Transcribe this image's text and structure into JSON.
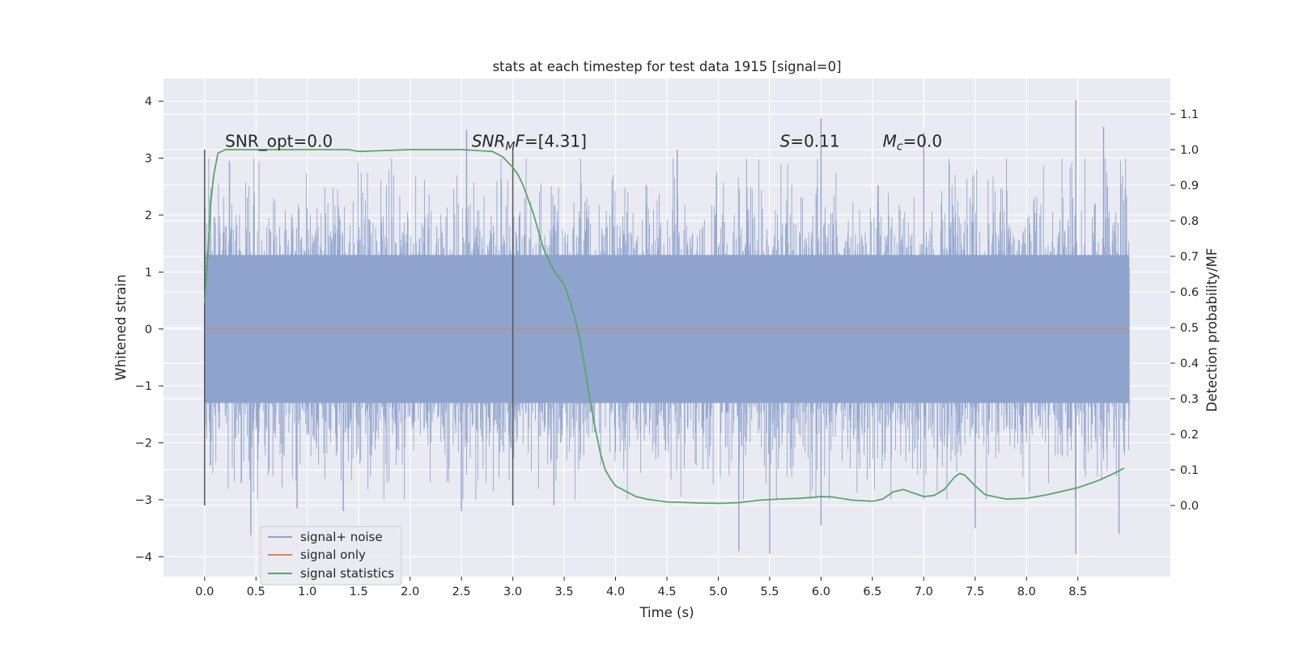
{
  "chart_data": {
    "type": "line",
    "title": "stats at each timestep for test data 1915 [signal=0]",
    "xlabel": "Time (s)",
    "ylabel": "Whitened strain",
    "y2label": "Detection probability/MF",
    "xlim": [
      -0.4,
      9.4
    ],
    "ylim": [
      -4.35,
      4.4
    ],
    "y2lim": [
      -0.2,
      1.2
    ],
    "xticks": [
      0.0,
      0.5,
      1.0,
      1.5,
      2.0,
      2.5,
      3.0,
      3.5,
      4.0,
      4.5,
      5.0,
      5.5,
      6.0,
      6.5,
      7.0,
      7.5,
      8.0,
      8.5
    ],
    "xtick_labels": [
      "0.0",
      "0.5",
      "1.0",
      "1.5",
      "2.0",
      "2.5",
      "3.0",
      "3.5",
      "4.0",
      "4.5",
      "5.0",
      "5.5",
      "6.0",
      "6.5",
      "7.0",
      "7.5",
      "8.0",
      "8.5"
    ],
    "yticks": [
      4,
      3,
      2,
      1,
      0,
      -1,
      -2,
      -3,
      -4
    ],
    "ytick_labels": [
      "4",
      "3",
      "2",
      "1",
      "0",
      "−1",
      "−2",
      "−3",
      "−4"
    ],
    "y2ticks": [
      1.1,
      1.0,
      0.9,
      0.8,
      0.7,
      0.6,
      0.5,
      0.4,
      0.3,
      0.2,
      0.1,
      0.0
    ],
    "y2tick_labels": [
      "1.1",
      "1.0",
      "0.9",
      "0.8",
      "0.7",
      "0.6",
      "0.5",
      "0.4",
      "0.3",
      "0.2",
      "0.1",
      "0.0"
    ],
    "grid": true,
    "legend_position": "lower-left",
    "legend": [
      {
        "label": "signal+ noise",
        "color": "#8fa4cc"
      },
      {
        "label": "signal only",
        "color": "#dd8452"
      },
      {
        "label": "signal statistics",
        "color": "#55a868"
      }
    ],
    "annotations": [
      {
        "x": 0.2,
        "y": 3.2,
        "parts": [
          {
            "t": "SNR_opt=0.0",
            "i": false
          }
        ]
      },
      {
        "x": 2.6,
        "y": 3.2,
        "parts": [
          {
            "t": "SNR",
            "i": true
          },
          {
            "t": "M",
            "i": true,
            "sub": true
          },
          {
            "t": "F",
            "i": true
          },
          {
            "t": "=[4.31]",
            "i": false
          }
        ]
      },
      {
        "x": 5.6,
        "y": 3.2,
        "parts": [
          {
            "t": "S",
            "i": true
          },
          {
            "t": "=0.11",
            "i": false
          }
        ]
      },
      {
        "x": 6.6,
        "y": 3.2,
        "parts": [
          {
            "t": "M",
            "i": true
          },
          {
            "t": "c",
            "i": true,
            "sub": true
          },
          {
            "t": "=0.0",
            "i": false
          }
        ]
      }
    ],
    "markers": [
      {
        "x": 0.0,
        "y0": -3.1,
        "y1": 3.15
      },
      {
        "x": 3.0,
        "y0": -3.1,
        "y1": 3.15
      }
    ],
    "series": [
      {
        "name": "signal+ noise",
        "axis": "left",
        "color": "#8fa4cc",
        "style": "noise-band",
        "x_range": [
          0.0,
          9.0
        ],
        "core_amplitude": 1.3,
        "typical_peak": 2.4,
        "peaks": [
          {
            "x": 0.45,
            "y": -3.62
          },
          {
            "x": 0.9,
            "y": -3.15
          },
          {
            "x": 1.35,
            "y": -3.2
          },
          {
            "x": 2.5,
            "y": -3.2
          },
          {
            "x": 2.55,
            "y": 3.5
          },
          {
            "x": 3.4,
            "y": -3.1
          },
          {
            "x": 4.6,
            "y": 3.15
          },
          {
            "x": 5.2,
            "y": -3.9
          },
          {
            "x": 5.5,
            "y": -3.95
          },
          {
            "x": 6.0,
            "y": 3.7
          },
          {
            "x": 6.0,
            "y": -3.45
          },
          {
            "x": 7.0,
            "y": 3.45
          },
          {
            "x": 7.5,
            "y": -3.5
          },
          {
            "x": 8.48,
            "y": 4.02
          },
          {
            "x": 8.48,
            "y": -3.95
          },
          {
            "x": 8.75,
            "y": 3.55
          },
          {
            "x": 8.9,
            "y": -3.6
          }
        ]
      },
      {
        "name": "signal only",
        "axis": "left",
        "color": "#dd8452",
        "x": [
          0.0,
          9.0
        ],
        "y": [
          0.0,
          0.0
        ]
      },
      {
        "name": "signal statistics",
        "axis": "right",
        "color": "#55a868",
        "x": [
          0.0,
          0.03,
          0.06,
          0.09,
          0.13,
          0.2,
          0.3,
          0.5,
          1.0,
          1.4,
          1.5,
          2.0,
          2.5,
          2.8,
          2.9,
          3.0,
          3.05,
          3.1,
          3.2,
          3.3,
          3.4,
          3.5,
          3.55,
          3.6,
          3.65,
          3.7,
          3.75,
          3.8,
          3.85,
          3.9,
          3.95,
          4.0,
          4.1,
          4.2,
          4.3,
          4.5,
          4.8,
          5.0,
          5.2,
          5.4,
          5.6,
          5.8,
          6.0,
          6.1,
          6.3,
          6.5,
          6.6,
          6.7,
          6.8,
          6.9,
          7.0,
          7.1,
          7.2,
          7.3,
          7.35,
          7.4,
          7.5,
          7.6,
          7.8,
          8.0,
          8.2,
          8.5,
          8.7,
          8.85,
          8.95
        ],
        "y": [
          0.57,
          0.7,
          0.85,
          0.93,
          0.99,
          1.0,
          1.0,
          1.0,
          1.0,
          1.0,
          0.995,
          1.0,
          1.0,
          0.995,
          0.98,
          0.95,
          0.93,
          0.9,
          0.82,
          0.72,
          0.66,
          0.62,
          0.58,
          0.53,
          0.47,
          0.39,
          0.3,
          0.22,
          0.15,
          0.1,
          0.075,
          0.055,
          0.04,
          0.025,
          0.018,
          0.01,
          0.007,
          0.006,
          0.008,
          0.015,
          0.018,
          0.02,
          0.025,
          0.024,
          0.015,
          0.012,
          0.018,
          0.038,
          0.045,
          0.035,
          0.025,
          0.028,
          0.045,
          0.08,
          0.09,
          0.085,
          0.055,
          0.03,
          0.018,
          0.02,
          0.03,
          0.05,
          0.07,
          0.09,
          0.105
        ]
      }
    ]
  }
}
